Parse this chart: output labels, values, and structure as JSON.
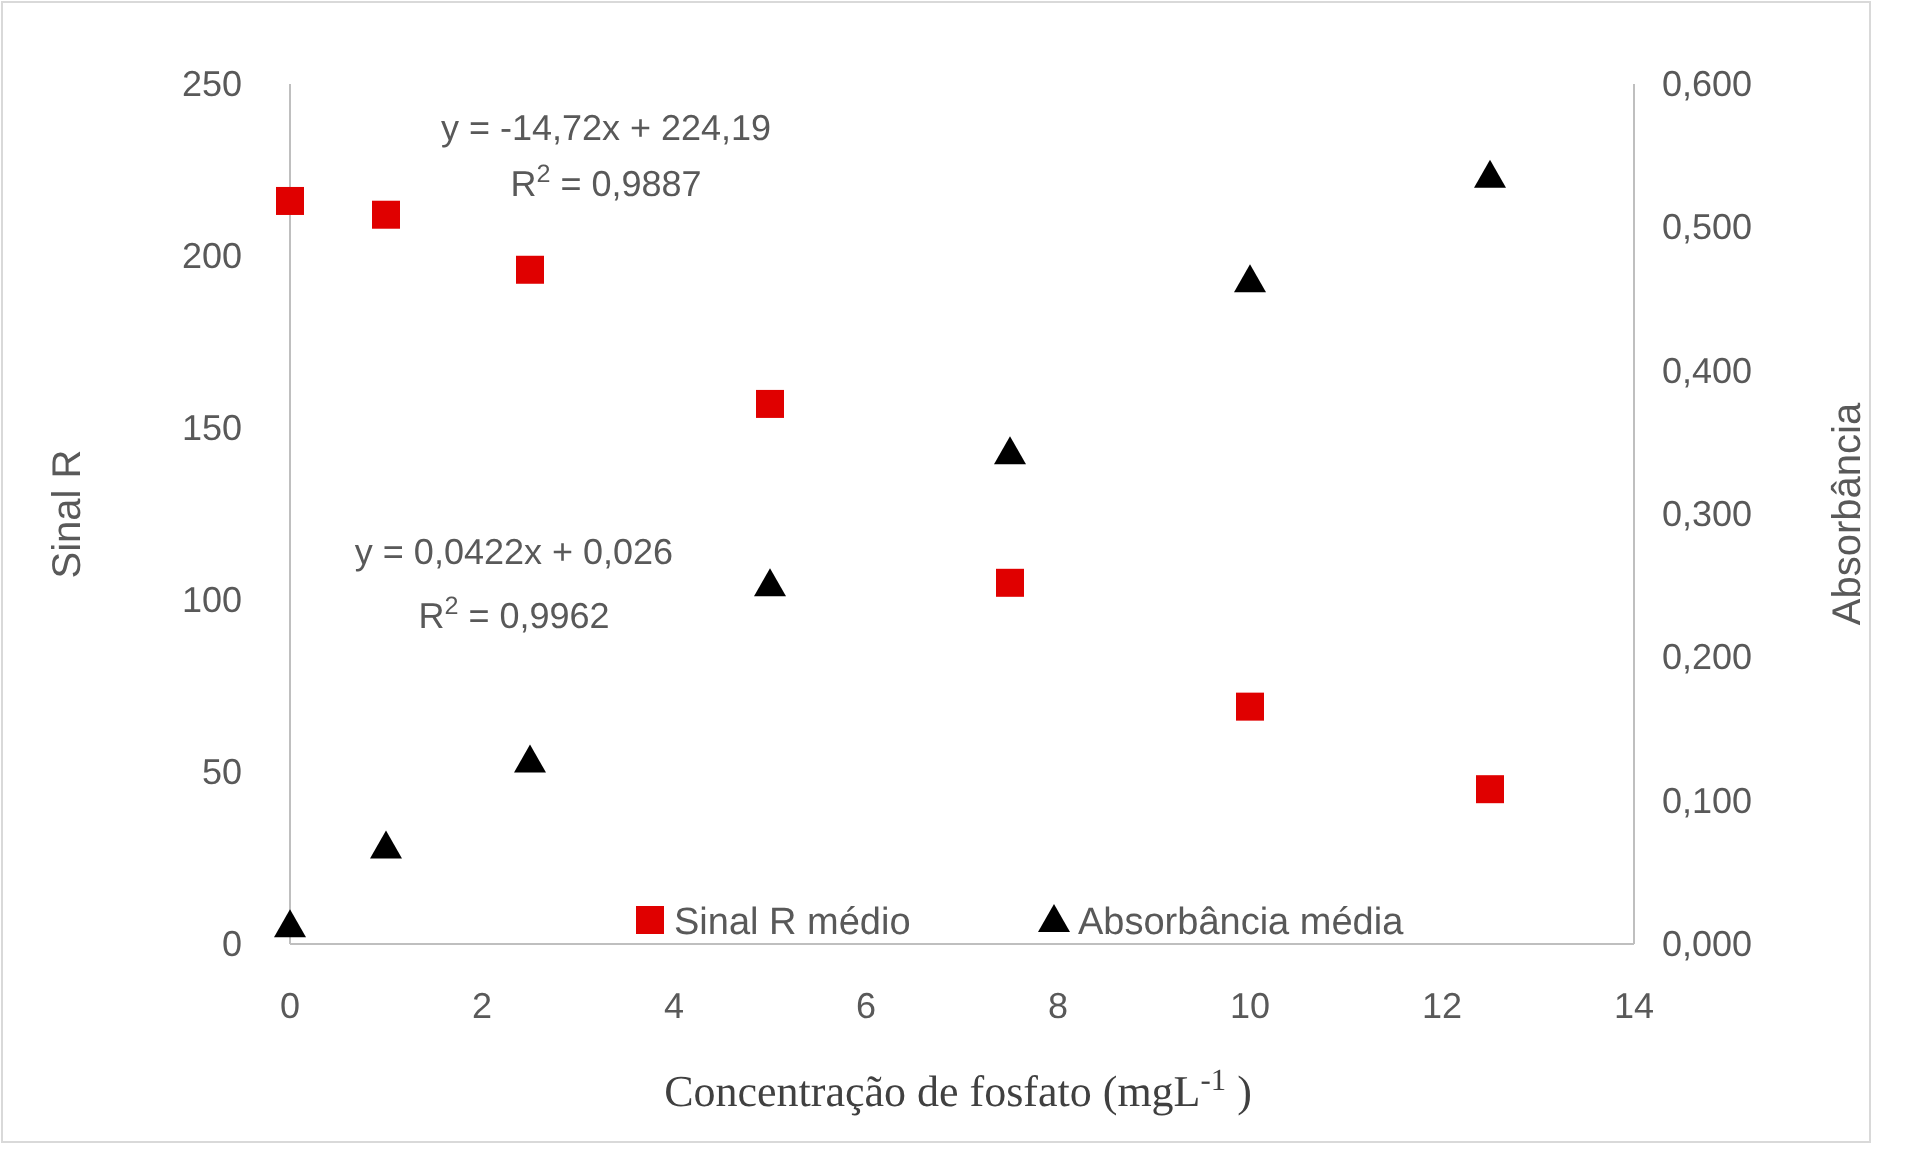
{
  "chart_data": {
    "type": "scatter",
    "xlabel": "Concentração de fosfato (mgL$^{-1}$ )",
    "ylabel": "Sinal R",
    "y2label": "Absorbância",
    "xlim": [
      0,
      14
    ],
    "xticks": [
      0,
      2,
      4,
      6,
      8,
      10,
      12,
      14
    ],
    "ylim": [
      0,
      250
    ],
    "yticks": [
      0,
      50,
      100,
      150,
      200,
      250
    ],
    "y2lim": [
      0,
      0.6
    ],
    "y2ticks": [
      {
        "value": 0,
        "label": "0,000"
      },
      {
        "value": 0.1,
        "label": "0,100"
      },
      {
        "value": 0.2,
        "label": "0,200"
      },
      {
        "value": 0.3,
        "label": "0,300"
      },
      {
        "value": 0.4,
        "label": "0,400"
      },
      {
        "value": 0.5,
        "label": "0,500"
      },
      {
        "value": 0.6,
        "label": "0,600"
      }
    ],
    "x": [
      0,
      1,
      2.5,
      5,
      7.5,
      10,
      12.5
    ],
    "series": [
      {
        "name": "Sinal R médio",
        "color": "#e00000",
        "marker": "square",
        "values": [
          216,
          212,
          196,
          157,
          105,
          69,
          45
        ]
      },
      {
        "name": "Absorbância média",
        "color": "#000000",
        "marker": "triangle",
        "axis": "y2",
        "values": [
          0.013,
          0.068,
          0.128,
          0.251,
          0.343,
          0.463,
          0.536
        ]
      }
    ],
    "annotations": [
      "y = -14,72x + 224,19",
      "R$^{2}$ = 0,9887",
      "y = 0,0422x + 0,026",
      "R$^{2}$ = 0,9962"
    ],
    "legend": "bottom",
    "grid": false
  }
}
